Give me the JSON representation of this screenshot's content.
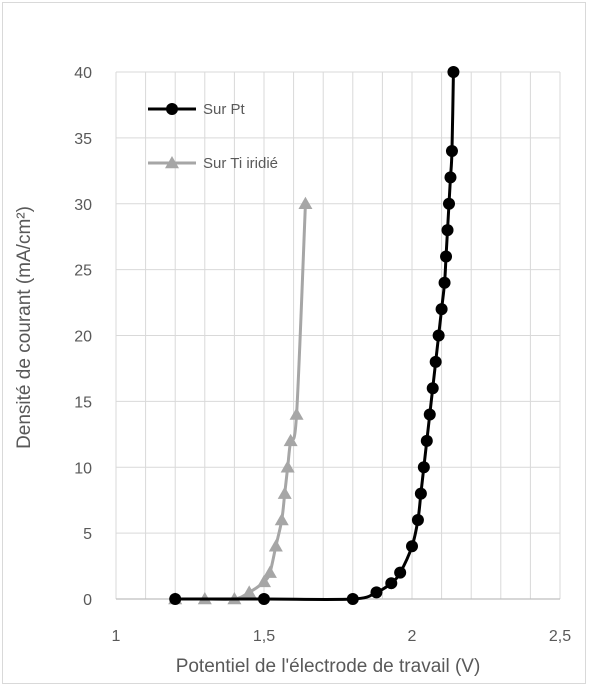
{
  "chart_data": {
    "type": "scatter",
    "title": "",
    "xlabel": "Potentiel de l'électrode de travail (V)",
    "ylabel": "Densité de courant (mA/cm²)",
    "xlim": [
      1,
      2.5
    ],
    "ylim": [
      0,
      40
    ],
    "x_ticks": [
      "1",
      "1,5",
      "2",
      "2,5"
    ],
    "y_ticks": [
      "0",
      "5",
      "10",
      "15",
      "20",
      "25",
      "30",
      "35",
      "40"
    ],
    "x_tick_values": [
      1,
      1.5,
      2,
      2.5
    ],
    "y_tick_values": [
      0,
      5,
      10,
      15,
      20,
      25,
      30,
      35,
      40
    ],
    "grid": true,
    "legend_position": "top-left",
    "series": [
      {
        "name": "Sur Pt",
        "color": "#000000",
        "marker": "circle",
        "x": [
          1.2,
          1.5,
          1.8,
          1.88,
          1.93,
          1.96,
          2.0,
          2.02,
          2.03,
          2.04,
          2.05,
          2.06,
          2.07,
          2.08,
          2.09,
          2.1,
          2.11,
          2.115,
          2.12,
          2.125,
          2.13,
          2.135,
          2.14
        ],
        "y": [
          0,
          0,
          0,
          0.5,
          1.2,
          2,
          4,
          6,
          8,
          10,
          12,
          14,
          16,
          18,
          20,
          22,
          24,
          26,
          28,
          30,
          32,
          34,
          40
        ]
      },
      {
        "name": "Sur Ti iridié",
        "color": "#a6a6a6",
        "marker": "triangle",
        "x": [
          1.2,
          1.3,
          1.4,
          1.45,
          1.5,
          1.52,
          1.54,
          1.56,
          1.57,
          1.58,
          1.59,
          1.61,
          1.64
        ],
        "y": [
          0,
          0,
          0,
          0.5,
          1.3,
          2,
          4,
          6,
          8,
          10,
          12,
          14,
          30
        ]
      }
    ]
  }
}
